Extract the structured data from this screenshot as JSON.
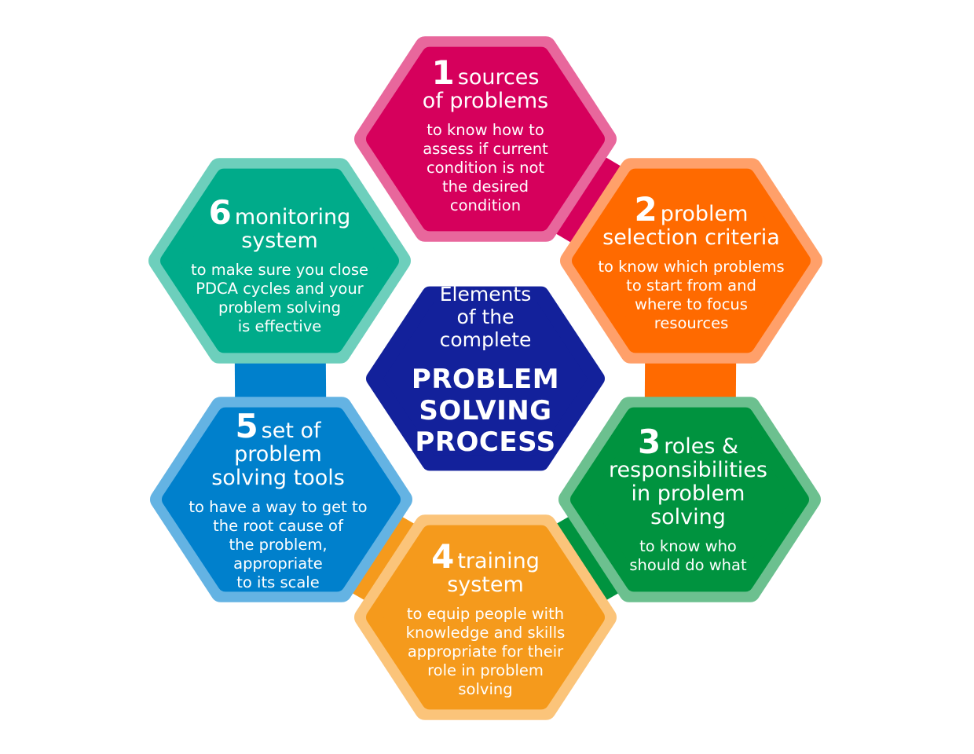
{
  "center": {
    "intro": [
      "Elements",
      "of the",
      "complete"
    ],
    "main": [
      "PROBLEM",
      "SOLVING",
      "PROCESS"
    ],
    "color": "#13219b"
  },
  "elements": [
    {
      "number": "1",
      "title": [
        "sources",
        "of problems"
      ],
      "description": [
        "to know how to",
        "assess if current",
        "condition is not",
        "the desired",
        "condition"
      ],
      "color": "#d6005c",
      "border": "#e8679c"
    },
    {
      "number": "2",
      "title": [
        "problem",
        "selection criteria"
      ],
      "description": [
        "to know which problems",
        "to start from and",
        "where to focus",
        "resources"
      ],
      "color": "#ff6a00",
      "border": "#ffa06a"
    },
    {
      "number": "3",
      "title": [
        "roles &",
        "responsibilities",
        "in problem",
        "solving"
      ],
      "description": [
        "to know who",
        "should do what"
      ],
      "color": "#00933f",
      "border": "#6cc08f"
    },
    {
      "number": "4",
      "title": [
        "training",
        "system"
      ],
      "description": [
        "to equip people with",
        "knowledge and skills",
        "appropriate for their",
        "role in problem",
        "solving"
      ],
      "color": "#f59a1c",
      "border": "#fbc47a"
    },
    {
      "number": "5",
      "title": [
        "set of",
        "problem",
        "solving tools"
      ],
      "description": [
        "to have a way to get to",
        "the root cause of",
        "the problem,",
        "appropriate",
        "to its scale"
      ],
      "color": "#0080cc",
      "border": "#64b3e3"
    },
    {
      "number": "6",
      "title": [
        "monitoring",
        "system"
      ],
      "description": [
        "to make sure you close",
        "PDCA cycles and your",
        "problem solving",
        "is effective"
      ],
      "color": "#00ab8a",
      "border": "#6dcfbc"
    }
  ]
}
